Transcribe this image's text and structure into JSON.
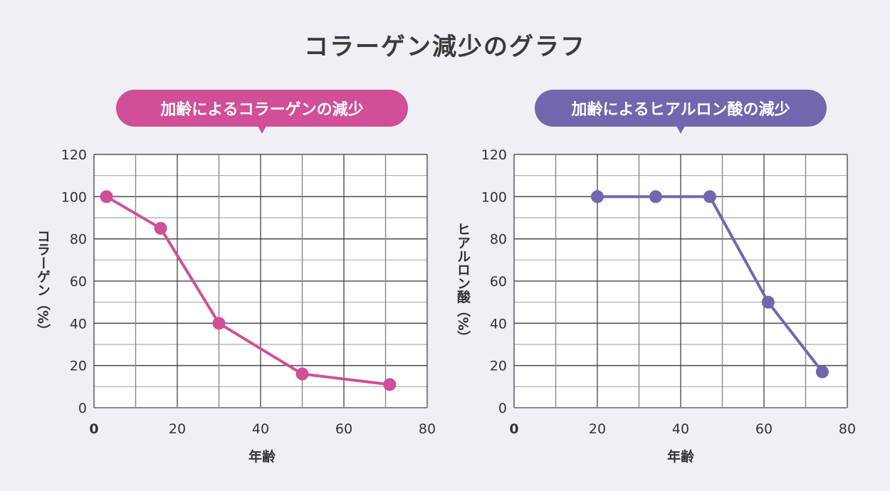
{
  "title": "コラーゲン減少のグラフ",
  "chart_data": [
    {
      "type": "line",
      "title": "加齢によるコラーゲンの減少",
      "xlabel": "年齢",
      "ylabel": "コラーゲン（%）",
      "xlim": [
        0,
        80
      ],
      "ylim": [
        0,
        120
      ],
      "xticks": [
        0,
        20,
        40,
        60,
        80
      ],
      "yticks": [
        0,
        20,
        40,
        60,
        80,
        100,
        120
      ],
      "grid": true,
      "color": "#d04f97",
      "x": [
        3,
        16,
        30,
        50,
        71
      ],
      "y": [
        100,
        85,
        40,
        16,
        11
      ]
    },
    {
      "type": "line",
      "title": "加齢によるヒアルロン酸の減少",
      "xlabel": "年齢",
      "ylabel": "ヒアルロン酸（%）",
      "xlim": [
        0,
        80
      ],
      "ylim": [
        0,
        120
      ],
      "xticks": [
        0,
        20,
        40,
        60,
        80
      ],
      "yticks": [
        0,
        20,
        40,
        60,
        80,
        100,
        120
      ],
      "grid": true,
      "color": "#7266ae",
      "x": [
        20,
        34,
        47,
        61,
        74
      ],
      "y": [
        100,
        100,
        100,
        50,
        17
      ]
    }
  ]
}
